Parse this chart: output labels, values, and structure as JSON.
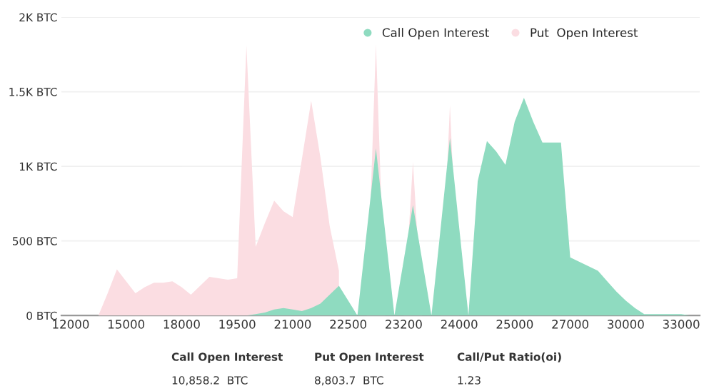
{
  "chart_data": {
    "type": "area",
    "categories": [
      null,
      "12000",
      null,
      null,
      null,
      null,
      null,
      "15000",
      null,
      null,
      null,
      null,
      null,
      "18000",
      null,
      null,
      null,
      null,
      null,
      "19500",
      null,
      null,
      null,
      null,
      null,
      "21000",
      null,
      null,
      null,
      null,
      null,
      "22500",
      null,
      null,
      null,
      null,
      null,
      "23200",
      null,
      null,
      null,
      null,
      null,
      "24000",
      null,
      null,
      null,
      null,
      null,
      "25000",
      null,
      null,
      null,
      null,
      null,
      "27000",
      null,
      null,
      null,
      null,
      null,
      "30000",
      null,
      null,
      null,
      null,
      null,
      "33000",
      null,
      null
    ],
    "series": [
      {
        "name": "Call Open Interest",
        "color": "#8fdbc0",
        "values": [
          0,
          0,
          0,
          0,
          0,
          0,
          0,
          0,
          0,
          0,
          0,
          0,
          0,
          0,
          0,
          0,
          0,
          0,
          0,
          0,
          0,
          10,
          20,
          40,
          50,
          40,
          30,
          50,
          80,
          140,
          200,
          100,
          0,
          560,
          1120,
          560,
          0,
          370,
          740,
          370,
          0,
          590,
          1190,
          590,
          0,
          900,
          1170,
          1100,
          1010,
          1300,
          1460,
          1300,
          1160,
          1160,
          1160,
          390,
          360,
          330,
          300,
          230,
          160,
          100,
          50,
          10,
          10,
          10,
          10,
          10,
          0,
          0
        ]
      },
      {
        "name": "Put  Open Interest",
        "color": "#fbdde2",
        "values": [
          0,
          0,
          0,
          0,
          0,
          150,
          310,
          230,
          150,
          190,
          220,
          220,
          230,
          190,
          140,
          200,
          260,
          250,
          240,
          250,
          1810,
          460,
          620,
          770,
          700,
          660,
          1050,
          1440,
          1060,
          600,
          300,
          null,
          0,
          0,
          1820,
          0,
          0,
          0,
          1030,
          0,
          0,
          0,
          1410,
          0,
          0,
          0,
          0,
          0,
          0,
          0,
          0,
          0,
          0,
          0,
          0,
          0,
          0,
          0,
          0,
          0,
          0,
          0,
          0,
          0,
          0,
          0,
          0,
          0,
          0,
          0
        ]
      }
    ],
    "ylim": [
      0,
      2000
    ],
    "yticks": [
      {
        "value": 0,
        "label": "0 BTC"
      },
      {
        "value": 500,
        "label": "500 BTC"
      },
      {
        "value": 1000,
        "label": "1K BTC"
      },
      {
        "value": 1500,
        "label": "1.5K BTC"
      },
      {
        "value": 2000,
        "label": "2K BTC"
      }
    ],
    "grid": "y",
    "legend": "top right",
    "annotations": [
      "Call Open Interest",
      "10,858.2  BTC",
      "Put Open Interest",
      "8,803.7  BTC",
      "Call/Put Ratio(oi)",
      "1.23"
    ]
  }
}
